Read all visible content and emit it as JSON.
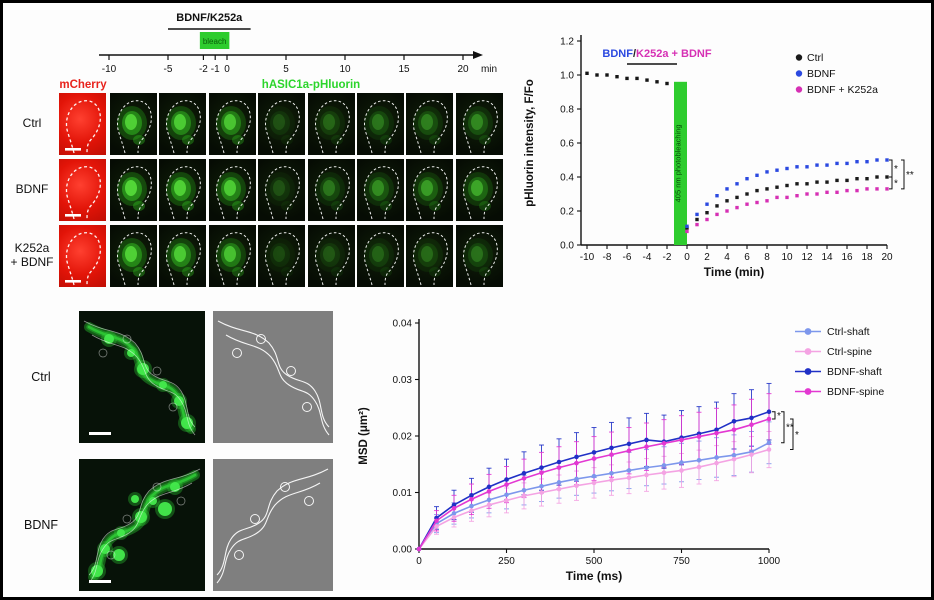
{
  "colors": {
    "red": "#e8231c",
    "green": "#2ecc2e",
    "blue": "#2b49e0",
    "magenta": "#d630b4",
    "light_blue": "#7d97ec",
    "pink": "#f4a3e3",
    "dark_blue": "#2030c6",
    "bright_magenta": "#e338d2",
    "black": "#1a1a1a"
  },
  "top_left": {
    "timeline": {
      "treatment_label": "BDNF/K252a",
      "bleach_label": "bleach",
      "ticks": [
        "-10",
        "-5",
        "-2",
        "-1",
        "0",
        "5",
        "10",
        "15",
        "20"
      ],
      "tick_values": [
        -10,
        -5,
        -2,
        -1,
        0,
        5,
        10,
        15,
        20
      ],
      "unit": "min"
    },
    "channel_labels": {
      "mcherry": "mCherry",
      "phluorin": "hASIC1a-pHluorin"
    },
    "frames_per_row": 8,
    "rows": [
      {
        "label": "Ctrl",
        "frame_intensities": [
          0.85,
          0.8,
          0.75,
          0.18,
          0.26,
          0.32,
          0.36,
          0.4
        ]
      },
      {
        "label": "BDNF",
        "frame_intensities": [
          0.9,
          0.85,
          0.8,
          0.18,
          0.32,
          0.42,
          0.5,
          0.56
        ]
      },
      {
        "label": "K252a\n+ BDNF",
        "frame_intensities": [
          0.85,
          0.8,
          0.72,
          0.15,
          0.2,
          0.24,
          0.27,
          0.3
        ]
      }
    ]
  },
  "bottom_left": {
    "rows": [
      {
        "label": "Ctrl"
      },
      {
        "label": "BDNF"
      }
    ]
  },
  "chart_data": [
    {
      "id": "phluorin-recovery",
      "type": "scatter",
      "xlabel": "Time (min)",
      "ylabel": "pHluorin intensity, F/Fo",
      "xlim": [
        -10,
        20
      ],
      "ylim": [
        0,
        1.2
      ],
      "xticks": [
        -10,
        -8,
        -6,
        -4,
        -2,
        0,
        2,
        4,
        6,
        8,
        10,
        12,
        14,
        16,
        18,
        20
      ],
      "yticks": [
        0,
        0.2,
        0.4,
        0.6,
        0.8,
        1,
        1.2
      ],
      "bleach_band": {
        "x0": -1.3,
        "x1": 0,
        "label": "405 nm photobleaching",
        "color": "#2ecc2e"
      },
      "annotation": {
        "parts": [
          {
            "text": "BDNF",
            "color": "#2b49e0"
          },
          {
            "text": "/",
            "color": "#222222"
          },
          {
            "text": "K252a + BDNF",
            "color": "#d630b4"
          }
        ],
        "bar_x": [
          -6,
          -1
        ]
      },
      "pre_bleach": {
        "x": [
          -10,
          -9,
          -8,
          -7,
          -6,
          -5,
          -4,
          -3,
          -2
        ],
        "y": [
          1.01,
          1.0,
          1.0,
          0.99,
          0.98,
          0.98,
          0.97,
          0.96,
          0.95
        ]
      },
      "post_x": [
        0,
        1,
        2,
        3,
        4,
        5,
        6,
        7,
        8,
        9,
        10,
        11,
        12,
        13,
        14,
        15,
        16,
        17,
        18,
        19,
        20
      ],
      "series": [
        {
          "name": "Ctrl",
          "color": "#1a1a1a",
          "y": [
            0.1,
            0.15,
            0.19,
            0.23,
            0.26,
            0.28,
            0.3,
            0.32,
            0.33,
            0.34,
            0.35,
            0.36,
            0.36,
            0.37,
            0.37,
            0.38,
            0.38,
            0.39,
            0.39,
            0.4,
            0.4
          ]
        },
        {
          "name": "BDNF",
          "color": "#2b49e0",
          "y": [
            0.11,
            0.18,
            0.24,
            0.29,
            0.33,
            0.36,
            0.39,
            0.41,
            0.43,
            0.44,
            0.45,
            0.46,
            0.46,
            0.47,
            0.47,
            0.48,
            0.48,
            0.49,
            0.49,
            0.5,
            0.5
          ]
        },
        {
          "name": "BDNF + K252a",
          "color": "#d630b4",
          "y": [
            0.08,
            0.12,
            0.15,
            0.18,
            0.2,
            0.22,
            0.24,
            0.25,
            0.26,
            0.28,
            0.28,
            0.29,
            0.3,
            0.3,
            0.31,
            0.31,
            0.32,
            0.32,
            0.33,
            0.33,
            0.33
          ]
        }
      ],
      "significance": [
        {
          "series": [
            1,
            0
          ],
          "label": "*",
          "tier": 0
        },
        {
          "series": [
            0,
            2
          ],
          "label": "*",
          "tier": 0
        },
        {
          "series": [
            1,
            2
          ],
          "label": "**",
          "tier": 1
        }
      ]
    },
    {
      "id": "msd",
      "type": "line",
      "xlabel": "Time (ms)",
      "ylabel": "MSD (μm²)",
      "xlim": [
        0,
        1000
      ],
      "ylim": [
        0,
        0.04
      ],
      "xticks": [
        0,
        250,
        500,
        750,
        1000
      ],
      "yticks": [
        0,
        0.01,
        0.02,
        0.03,
        0.04
      ],
      "x": [
        0,
        50,
        100,
        150,
        200,
        250,
        300,
        350,
        400,
        450,
        500,
        550,
        600,
        650,
        700,
        750,
        800,
        850,
        900,
        950,
        1000
      ],
      "series": [
        {
          "name": "Ctrl-shaft",
          "color": "#7d97ec",
          "y": [
            0,
            0.0045,
            0.0063,
            0.0076,
            0.0087,
            0.0096,
            0.0104,
            0.0111,
            0.0118,
            0.0124,
            0.0129,
            0.0134,
            0.0139,
            0.0144,
            0.0148,
            0.0153,
            0.0157,
            0.0162,
            0.0166,
            0.0172,
            0.0188
          ],
          "err": [
            0,
            0.0016,
            0.0019,
            0.0021,
            0.0023,
            0.0025,
            0.0026,
            0.0027,
            0.0028,
            0.0029,
            0.003,
            0.0031,
            0.0032,
            0.0032,
            0.0033,
            0.0034,
            0.0034,
            0.0035,
            0.0036,
            0.0036,
            0.0037
          ]
        },
        {
          "name": "Ctrl-spine",
          "color": "#f4a3e3",
          "y": [
            0,
            0.004,
            0.0056,
            0.0068,
            0.0078,
            0.0086,
            0.0094,
            0.01,
            0.0106,
            0.0112,
            0.0117,
            0.0122,
            0.0126,
            0.0131,
            0.0135,
            0.0139,
            0.0145,
            0.0152,
            0.0159,
            0.0167,
            0.0176
          ],
          "err": [
            0,
            0.0014,
            0.0017,
            0.0019,
            0.0021,
            0.0022,
            0.0023,
            0.0024,
            0.0025,
            0.0026,
            0.0027,
            0.0027,
            0.0028,
            0.0029,
            0.0029,
            0.003,
            0.003,
            0.0031,
            0.0031,
            0.0032,
            0.0032
          ]
        },
        {
          "name": "BDNF-shaft",
          "color": "#2030c6",
          "y": [
            0,
            0.0055,
            0.0078,
            0.0095,
            0.011,
            0.0123,
            0.0134,
            0.0144,
            0.0154,
            0.0163,
            0.0171,
            0.0179,
            0.0186,
            0.0193,
            0.019,
            0.0197,
            0.0204,
            0.0211,
            0.0226,
            0.0232,
            0.0243
          ],
          "err": [
            0,
            0.002,
            0.0026,
            0.003,
            0.0033,
            0.0036,
            0.0038,
            0.004,
            0.0041,
            0.0043,
            0.0044,
            0.0045,
            0.0046,
            0.0047,
            0.0047,
            0.0048,
            0.0048,
            0.0049,
            0.0049,
            0.005,
            0.005
          ]
        },
        {
          "name": "BDNF-spine",
          "color": "#e338d2",
          "y": [
            0,
            0.005,
            0.0072,
            0.0088,
            0.0102,
            0.0114,
            0.0125,
            0.0135,
            0.0144,
            0.0152,
            0.016,
            0.0167,
            0.0174,
            0.0181,
            0.0187,
            0.0193,
            0.0199,
            0.0205,
            0.0211,
            0.022,
            0.023
          ],
          "err": [
            0,
            0.0018,
            0.0023,
            0.0027,
            0.003,
            0.0032,
            0.0034,
            0.0036,
            0.0037,
            0.0038,
            0.0039,
            0.004,
            0.0041,
            0.0042,
            0.0042,
            0.0043,
            0.0043,
            0.0044,
            0.0044,
            0.0045,
            0.0045
          ]
        }
      ],
      "significance": [
        {
          "series": [
            2,
            3
          ],
          "label": "*",
          "tier": 0
        },
        {
          "series": [
            2,
            0
          ],
          "label": "**",
          "tier": 1
        },
        {
          "series": [
            3,
            1
          ],
          "label": "*",
          "tier": 2
        }
      ]
    }
  ]
}
